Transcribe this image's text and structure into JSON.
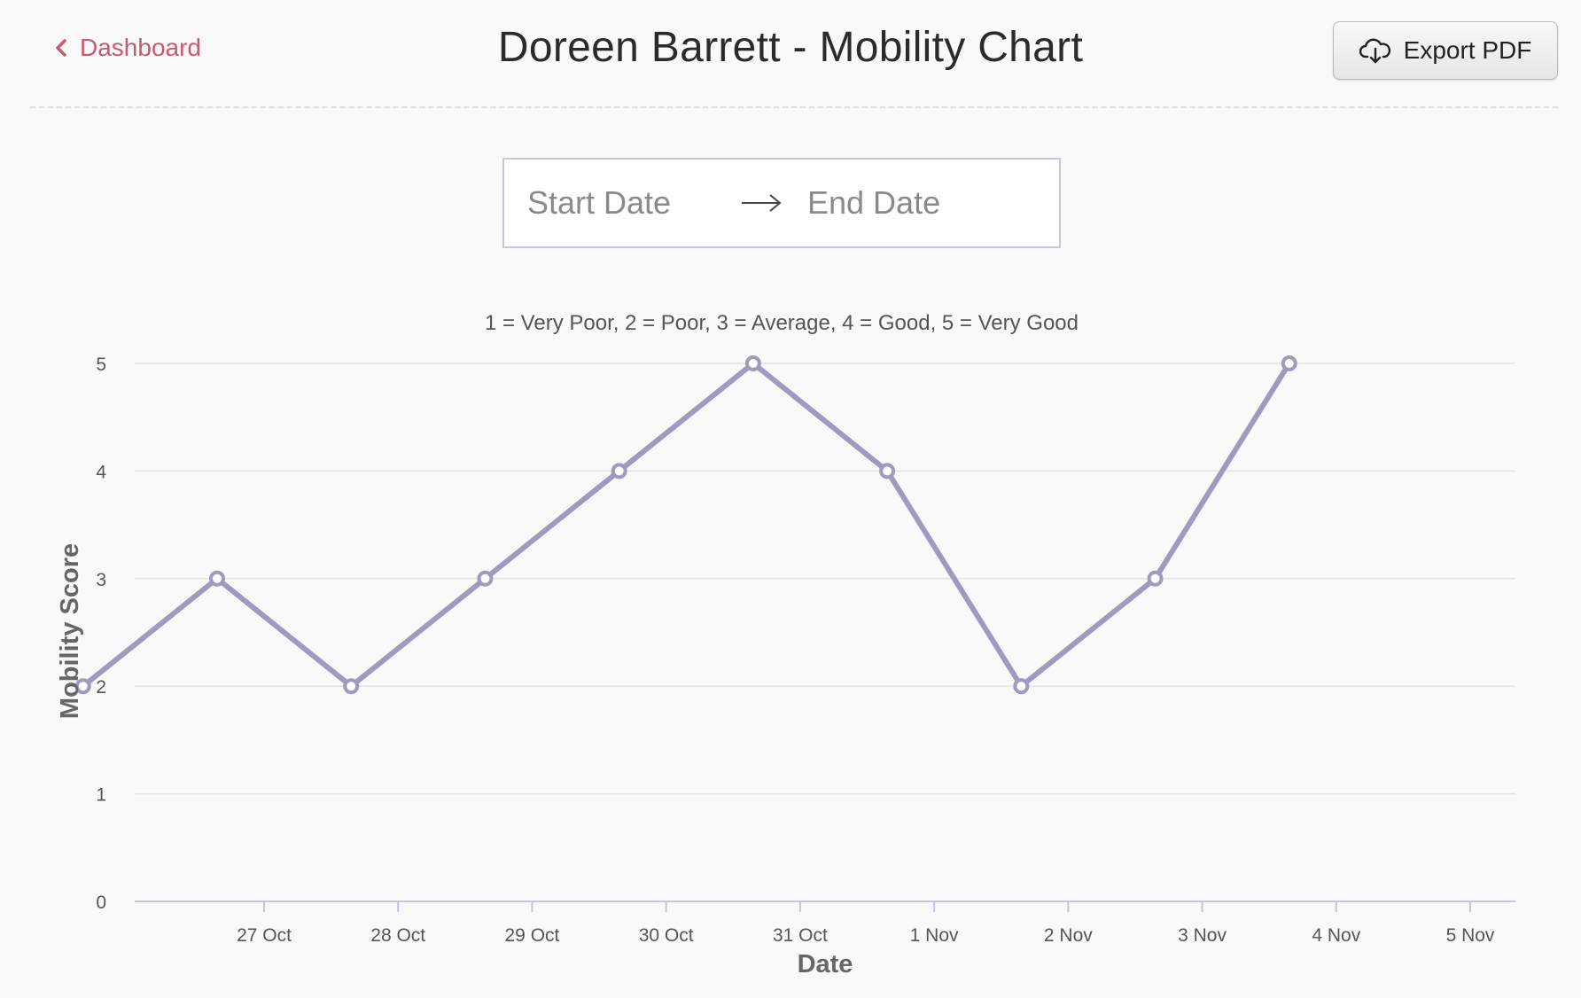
{
  "header": {
    "back_label": "Dashboard",
    "title": "Doreen Barrett - Mobility Chart",
    "export_label": "Export PDF"
  },
  "date_range": {
    "start_placeholder": "Start Date",
    "end_placeholder": "End Date"
  },
  "icons": {
    "back": "chevron-left-icon",
    "export": "cloud-download-icon",
    "range": "arrow-right-icon"
  },
  "colors": {
    "accent": "#c85a6e",
    "series": "#a399c0",
    "grid": "#e3e3e6",
    "axis": "#c9c3dd"
  },
  "chart_data": {
    "type": "line",
    "subtitle": "1 = Very Poor, 2 = Poor, 3 = Average, 4 = Good, 5 = Very Good",
    "xlabel": "Date",
    "ylabel": "Mobility Score",
    "x_tick_labels": [
      "27 Oct",
      "28 Oct",
      "29 Oct",
      "30 Oct",
      "31 Oct",
      "1 Nov",
      "2 Nov",
      "3 Nov",
      "4 Nov",
      "5 Nov"
    ],
    "y_ticks": [
      0,
      1,
      2,
      3,
      4,
      5
    ],
    "ylim": [
      0,
      5
    ],
    "grid": true,
    "legend": "none",
    "series": [
      {
        "points": [
          {
            "x": "26 Oct",
            "y": 2
          },
          {
            "x": "27 Oct",
            "y": 3
          },
          {
            "x": "28 Oct",
            "y": 2
          },
          {
            "x": "29 Oct",
            "y": 3
          },
          {
            "x": "30 Oct",
            "y": 4
          },
          {
            "x": "31 Oct",
            "y": 5
          },
          {
            "x": "1 Nov",
            "y": 4
          },
          {
            "x": "2 Nov",
            "y": 2
          },
          {
            "x": "3 Nov",
            "y": 3
          },
          {
            "x": "4 Nov",
            "y": 5
          }
        ]
      }
    ]
  }
}
